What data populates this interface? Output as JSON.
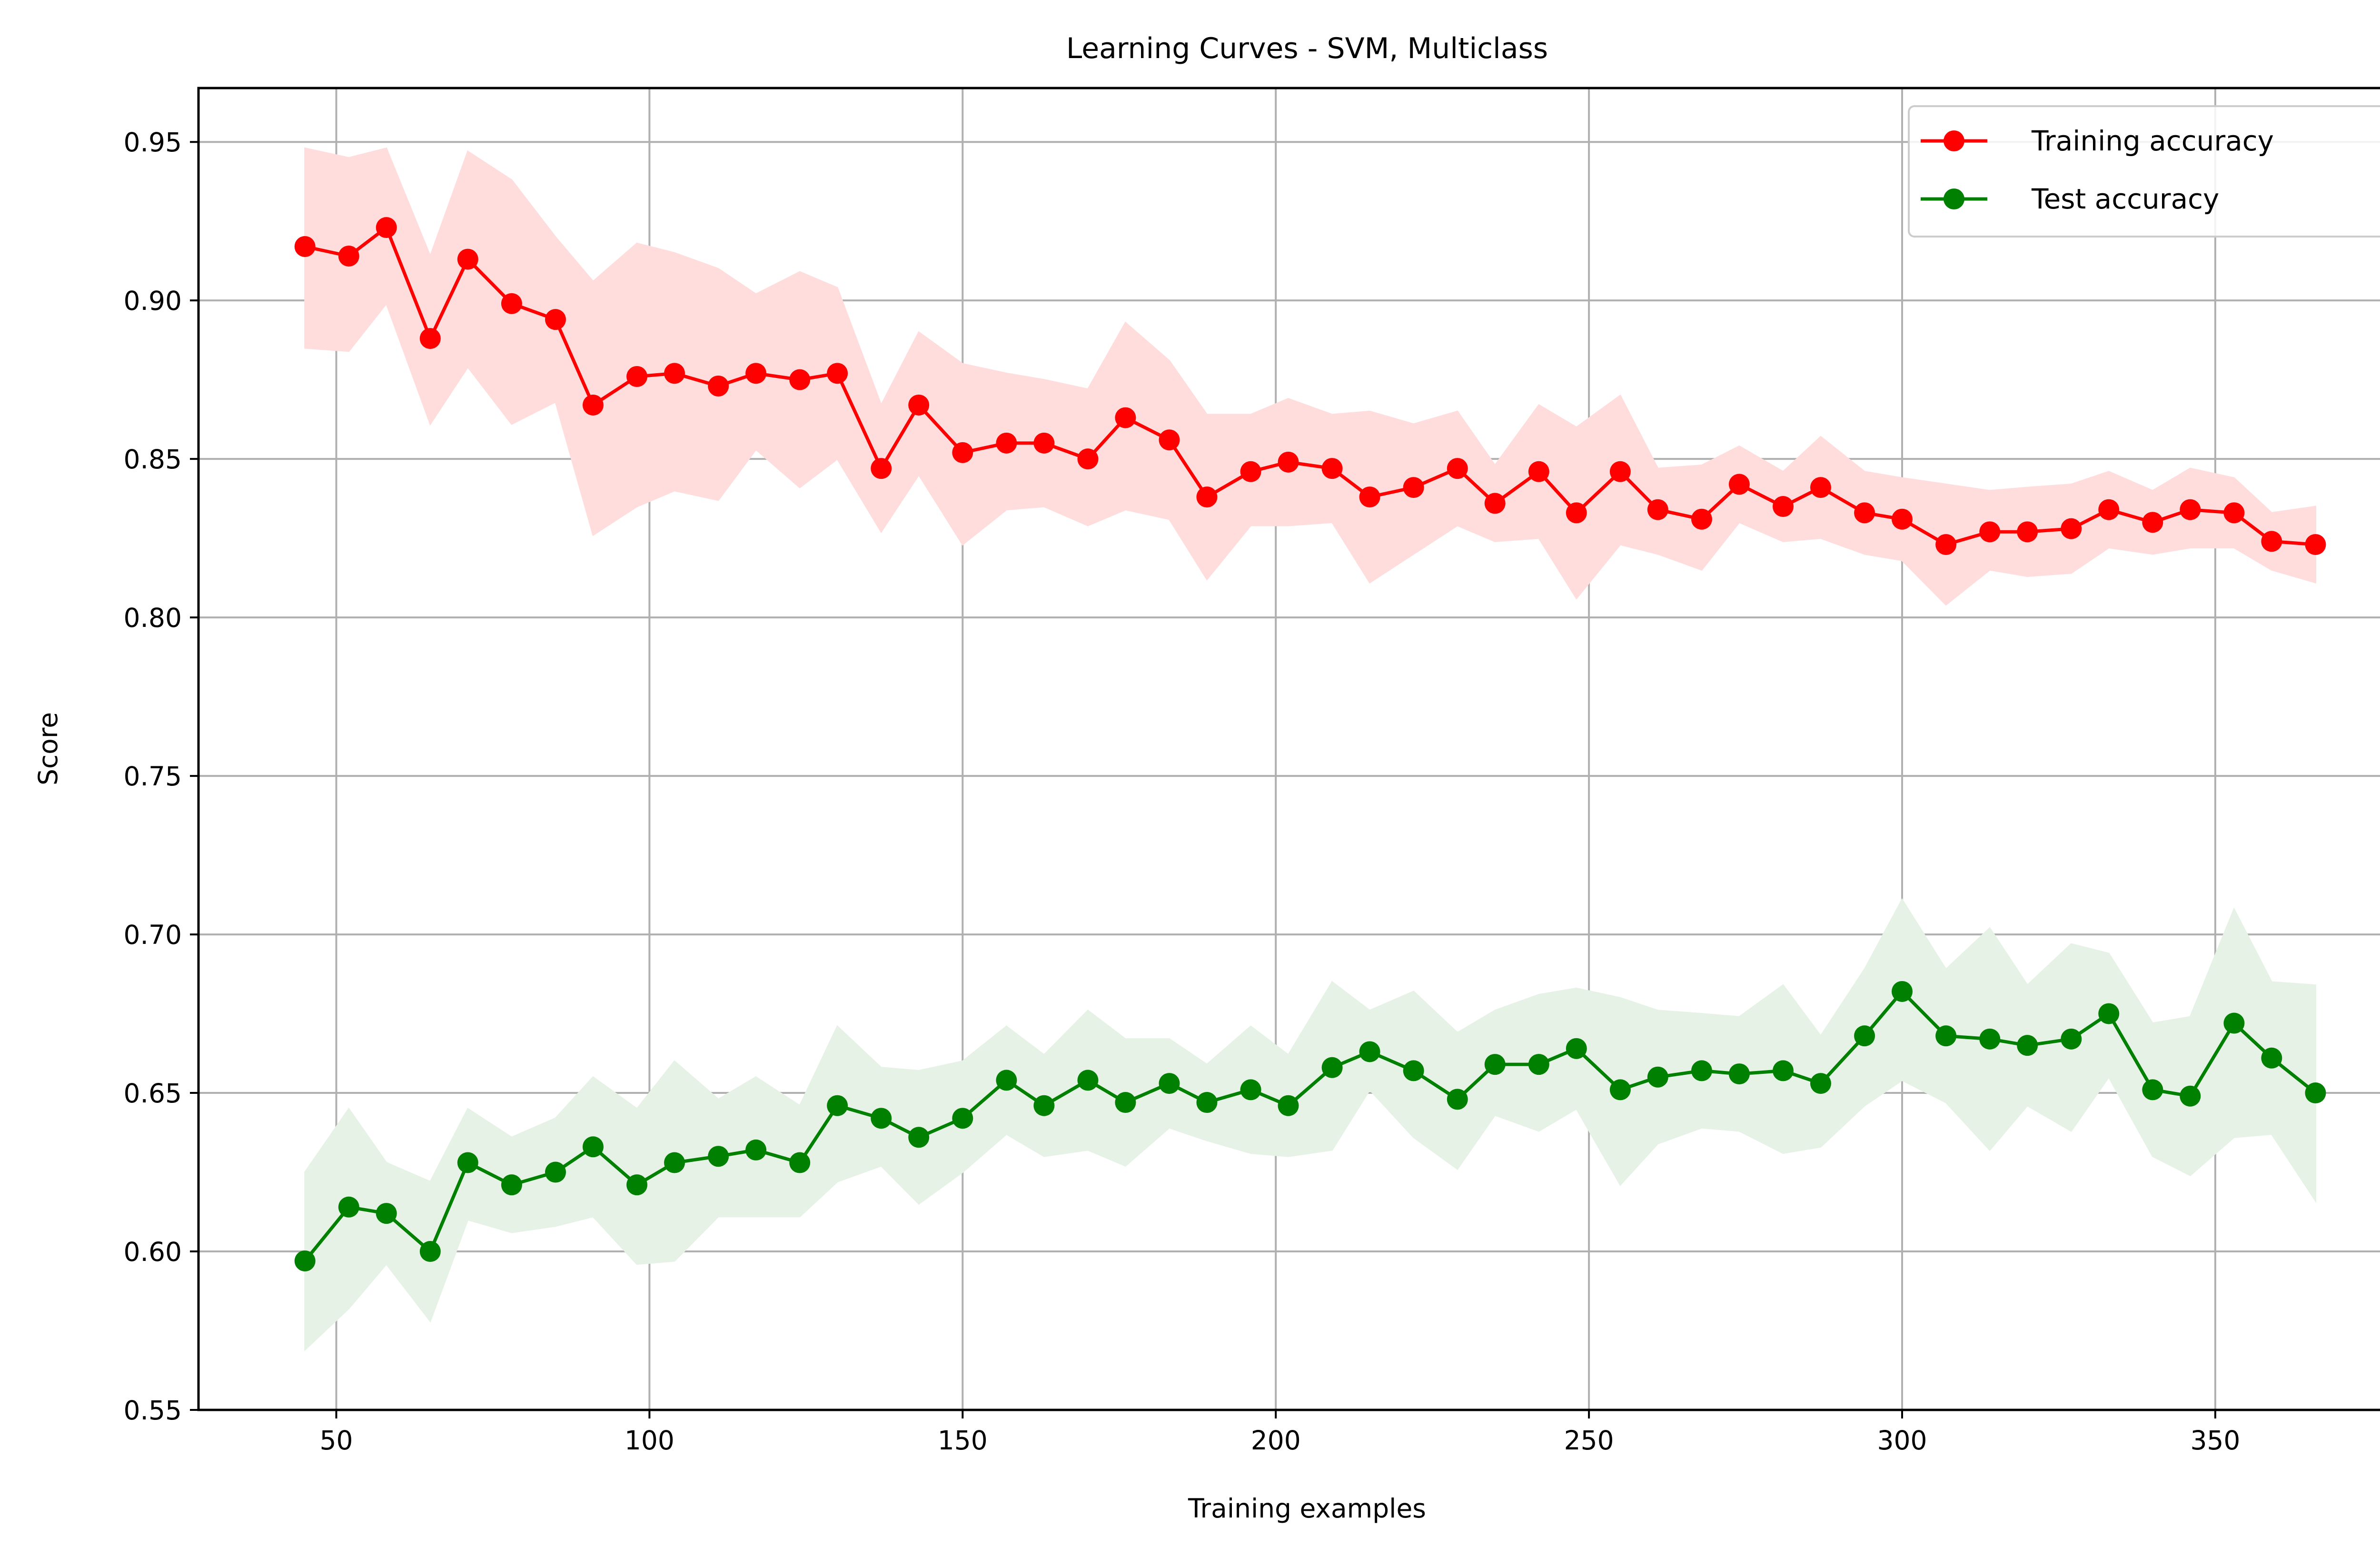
{
  "chart_data": {
    "type": "line",
    "title": "Learning Curves - SVM, Multiclass",
    "xlabel": "Training examples",
    "ylabel": "Score",
    "xlim": [
      28,
      382
    ],
    "ylim": [
      0.55,
      0.967
    ],
    "grid": true,
    "legend_position": "top-right",
    "xticks": [
      50,
      100,
      150,
      200,
      250,
      300,
      350
    ],
    "yticks": [
      0.55,
      0.6,
      0.65,
      0.7,
      0.75,
      0.8,
      0.85,
      0.9,
      0.95
    ],
    "x": [
      45,
      52,
      58,
      65,
      71,
      78,
      85,
      91,
      98,
      104,
      111,
      117,
      124,
      130,
      137,
      143,
      150,
      157,
      163,
      170,
      176,
      183,
      189,
      196,
      202,
      209,
      215,
      222,
      229,
      235,
      242,
      248,
      255,
      261,
      268,
      274,
      281,
      287,
      294,
      300,
      307,
      314,
      320,
      327,
      333,
      340,
      346,
      353,
      359,
      366
    ],
    "series": [
      {
        "name": "Training accuracy",
        "color": "#ff0000",
        "band_color": "#ffdddd",
        "values": [
          0.917,
          0.914,
          0.923,
          0.888,
          0.913,
          0.899,
          0.894,
          0.867,
          0.876,
          0.877,
          0.873,
          0.877,
          0.875,
          0.877,
          0.847,
          0.867,
          0.852,
          0.855,
          0.855,
          0.85,
          0.863,
          0.856,
          0.838,
          0.846,
          0.849,
          0.847,
          0.838,
          0.841,
          0.847,
          0.836,
          0.846,
          0.833,
          0.846,
          0.834,
          0.831,
          0.842,
          0.835,
          0.841,
          0.833,
          0.831,
          0.823,
          0.827,
          0.827,
          0.828,
          0.834,
          0.83,
          0.834,
          0.833,
          0.824,
          0.823
        ],
        "upper": [
          0.948,
          0.945,
          0.948,
          0.914,
          0.947,
          0.938,
          0.92,
          0.906,
          0.918,
          0.915,
          0.91,
          0.902,
          0.909,
          0.904,
          0.867,
          0.89,
          0.88,
          0.877,
          0.875,
          0.872,
          0.893,
          0.881,
          0.864,
          0.864,
          0.869,
          0.864,
          0.865,
          0.861,
          0.865,
          0.848,
          0.867,
          0.86,
          0.87,
          0.847,
          0.848,
          0.854,
          0.846,
          0.857,
          0.846,
          0.844,
          0.842,
          0.84,
          0.841,
          0.842,
          0.846,
          0.84,
          0.847,
          0.844,
          0.833,
          0.835
        ],
        "lower": [
          0.885,
          0.884,
          0.899,
          0.861,
          0.879,
          0.861,
          0.868,
          0.826,
          0.835,
          0.84,
          0.837,
          0.853,
          0.841,
          0.85,
          0.827,
          0.845,
          0.823,
          0.834,
          0.835,
          0.829,
          0.834,
          0.831,
          0.812,
          0.829,
          0.829,
          0.83,
          0.811,
          0.82,
          0.829,
          0.824,
          0.825,
          0.806,
          0.823,
          0.82,
          0.815,
          0.83,
          0.824,
          0.825,
          0.82,
          0.818,
          0.804,
          0.815,
          0.813,
          0.814,
          0.822,
          0.82,
          0.822,
          0.822,
          0.815,
          0.811
        ]
      },
      {
        "name": "Test accuracy",
        "color": "#008000",
        "band_color": "#e5f2e5",
        "values": [
          0.597,
          0.614,
          0.612,
          0.6,
          0.628,
          0.621,
          0.625,
          0.633,
          0.621,
          0.628,
          0.63,
          0.632,
          0.628,
          0.646,
          0.642,
          0.636,
          0.642,
          0.654,
          0.646,
          0.654,
          0.647,
          0.653,
          0.647,
          0.651,
          0.646,
          0.658,
          0.663,
          0.657,
          0.648,
          0.659,
          0.659,
          0.664,
          0.651,
          0.655,
          0.657,
          0.656,
          0.657,
          0.653,
          0.668,
          0.682,
          0.668,
          0.667,
          0.665,
          0.667,
          0.675,
          0.651,
          0.649,
          0.672,
          0.661,
          0.65
        ],
        "upper": [
          0.625,
          0.645,
          0.628,
          0.622,
          0.645,
          0.636,
          0.642,
          0.655,
          0.645,
          0.66,
          0.648,
          0.655,
          0.646,
          0.671,
          0.658,
          0.657,
          0.66,
          0.671,
          0.662,
          0.676,
          0.667,
          0.667,
          0.659,
          0.671,
          0.662,
          0.685,
          0.676,
          0.682,
          0.669,
          0.676,
          0.681,
          0.683,
          0.68,
          0.676,
          0.675,
          0.674,
          0.684,
          0.668,
          0.689,
          0.711,
          0.689,
          0.702,
          0.684,
          0.697,
          0.694,
          0.672,
          0.674,
          0.708,
          0.685,
          0.684
        ],
        "lower": [
          0.569,
          0.582,
          0.596,
          0.578,
          0.61,
          0.606,
          0.608,
          0.611,
          0.596,
          0.597,
          0.611,
          0.611,
          0.611,
          0.622,
          0.627,
          0.615,
          0.625,
          0.637,
          0.63,
          0.632,
          0.627,
          0.639,
          0.635,
          0.631,
          0.63,
          0.632,
          0.651,
          0.636,
          0.626,
          0.643,
          0.638,
          0.645,
          0.621,
          0.634,
          0.639,
          0.638,
          0.631,
          0.633,
          0.646,
          0.654,
          0.647,
          0.632,
          0.646,
          0.638,
          0.655,
          0.63,
          0.624,
          0.636,
          0.637,
          0.616
        ]
      }
    ]
  }
}
